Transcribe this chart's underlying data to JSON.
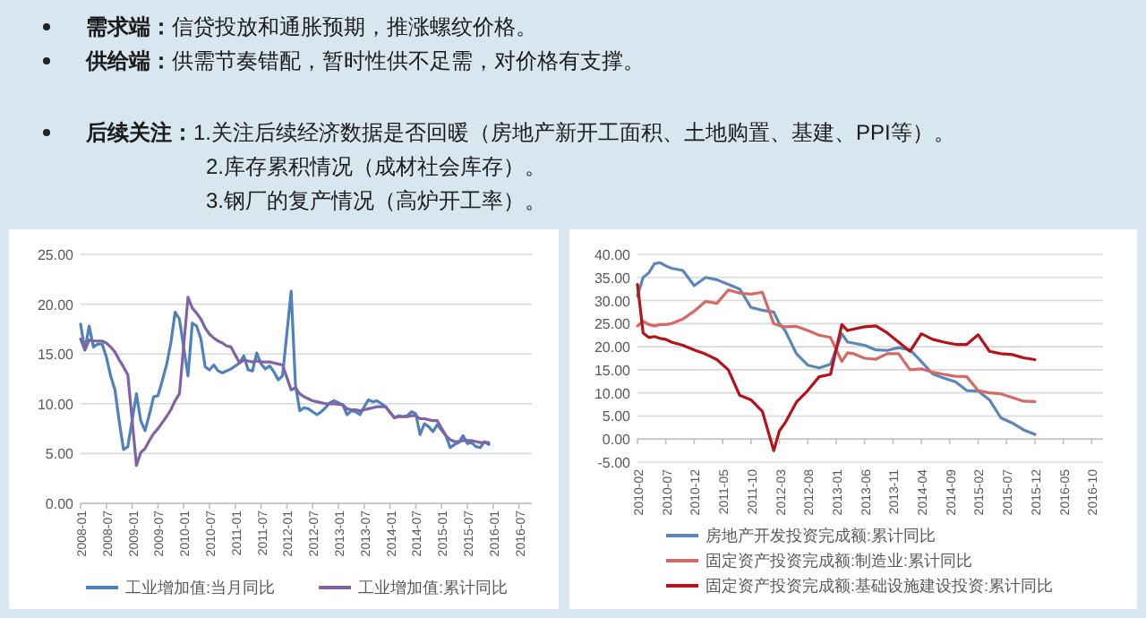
{
  "chart_data": [
    {
      "type": "other",
      "annotations": [
        "需求端：信贷投放和通胀预期，推涨螺纹价格。",
        "供给端：供需节奏错配，暂时性供不足需，对价格有支撑。",
        "后续关注：1.关注后续经济数据是否回暖（房地产新开工面积、土地购置、基建、PPI等）。",
        "2.库存累积情况（成材社会库存）。",
        "3.钢厂的复产情况（高炉开工率）。"
      ]
    },
    {
      "type": "line",
      "grid": "y",
      "legend": "bottom",
      "x": [
        "2008-01",
        "2008-02",
        "2008-03",
        "2008-04",
        "2008-05",
        "2008-06",
        "2008-07",
        "2008-08",
        "2008-09",
        "2008-10",
        "2008-11",
        "2008-12",
        "2009-02",
        "2009-03",
        "2009-04",
        "2009-05",
        "2009-06",
        "2009-07",
        "2009-08",
        "2009-09",
        "2009-10",
        "2009-11",
        "2009-12",
        "2010-02",
        "2010-03",
        "2010-04",
        "2010-05",
        "2010-06",
        "2010-07",
        "2010-08",
        "2010-09",
        "2010-10",
        "2010-11",
        "2010-12",
        "2011-02",
        "2011-03",
        "2011-04",
        "2011-05",
        "2011-06",
        "2011-07",
        "2011-08",
        "2011-09",
        "2011-10",
        "2011-11",
        "2011-12",
        "2012-02",
        "2012-03",
        "2012-04",
        "2012-05",
        "2012-06",
        "2012-07",
        "2012-08",
        "2012-09",
        "2012-10",
        "2012-11",
        "2012-12",
        "2013-02",
        "2013-03",
        "2013-04",
        "2013-05",
        "2013-06",
        "2013-07",
        "2013-08",
        "2013-09",
        "2013-10",
        "2013-11",
        "2013-12",
        "2014-02",
        "2014-03",
        "2014-04",
        "2014-05",
        "2014-06",
        "2014-07",
        "2014-08",
        "2014-09",
        "2014-10",
        "2014-11",
        "2014-12",
        "2015-02",
        "2015-03",
        "2015-04",
        "2015-05",
        "2015-06",
        "2015-07",
        "2015-08",
        "2015-09",
        "2015-10",
        "2015-11",
        "2015-12"
      ],
      "series": [
        {
          "name": "工业增加值:当月同比",
          "color": "#4f81bd",
          "values": [
            18,
            15.4,
            17.8,
            15.7,
            16,
            16,
            14.7,
            12.8,
            11.4,
            8.2,
            5.4,
            5.7,
            11,
            8.3,
            7.3,
            8.9,
            10.7,
            10.8,
            12.3,
            13.9,
            16.1,
            19.2,
            18.5,
            12.8,
            18.1,
            17.8,
            16.5,
            13.7,
            13.4,
            13.9,
            13.3,
            13.1,
            13.3,
            13.5,
            14.1,
            14.8,
            13.4,
            13.3,
            15.1,
            14,
            13.5,
            13.8,
            13.2,
            12.4,
            12.8,
            21.3,
            11.9,
            9.3,
            9.6,
            9.5,
            9.2,
            8.9,
            9.2,
            9.6,
            10.1,
            10.3,
            9.9,
            8.9,
            9.3,
            9.2,
            8.9,
            9.7,
            10.4,
            10.2,
            10.3,
            10,
            9.7,
            8.6,
            8.8,
            8.7,
            8.8,
            9.2,
            9,
            6.9,
            8,
            7.7,
            7.2,
            7.9,
            6.8,
            5.6,
            5.9,
            6.1,
            6.8,
            6,
            6.1,
            5.7,
            5.6,
            6.2,
            5.9
          ]
        },
        {
          "name": "工业增加值:累计同比",
          "color": "#7e64a6",
          "values": [
            16.5,
            15.4,
            16.4,
            16.3,
            16.3,
            16.3,
            16.1,
            15.7,
            15.2,
            14.4,
            13.7,
            12.9,
            3.8,
            5.1,
            5.5,
            6.3,
            7,
            7.5,
            8.1,
            8.7,
            9.4,
            10.3,
            11,
            20.7,
            19.6,
            19.1,
            18.5,
            17.6,
            17,
            16.6,
            16.3,
            16.1,
            15.8,
            15.7,
            14.1,
            14.4,
            14.3,
            14.2,
            14.3,
            14.2,
            14.2,
            14.2,
            14.1,
            14,
            13.9,
            11.4,
            11.6,
            11,
            10.7,
            10.5,
            10.3,
            10.2,
            10.1,
            10,
            10,
            10,
            9.9,
            9.5,
            9.4,
            9.4,
            9.3,
            9.4,
            9.5,
            9.6,
            9.7,
            9.7,
            9.7,
            8.6,
            8.7,
            8.7,
            8.7,
            8.8,
            8.8,
            8.5,
            8.5,
            8.4,
            8.3,
            8.3,
            6.8,
            6.4,
            6.2,
            6.2,
            6.3,
            6.3,
            6.3,
            6.2,
            6.1,
            6.1,
            6.1
          ]
        }
      ],
      "xlim": [
        "2008-01",
        "2016-10"
      ],
      "xticks": [
        "2008-01",
        "2008-07",
        "2009-01",
        "2009-07",
        "2010-01",
        "2010-07",
        "2011-01",
        "2011-07",
        "2012-01",
        "2012-07",
        "2013-01",
        "2013-07",
        "2014-01",
        "2014-07",
        "2015-01",
        "2015-07",
        "2016-01",
        "2016-07"
      ],
      "ylim": [
        0,
        25
      ],
      "yticks": [
        {
          "value": 0,
          "label": "0.00"
        },
        {
          "value": 5,
          "label": "5.00"
        },
        {
          "value": 10,
          "label": "10.00"
        },
        {
          "value": 15,
          "label": "15.00"
        },
        {
          "value": 20,
          "label": "20.00"
        },
        {
          "value": 25,
          "label": "25.00"
        }
      ]
    },
    {
      "type": "line",
      "grid": "y",
      "legend": "bottom",
      "x": [
        "2010-02",
        "2010-03",
        "2010-04",
        "2010-05",
        "2010-06",
        "2010-07",
        "2010-08",
        "2010-10",
        "2010-12",
        "2011-02",
        "2011-04",
        "2011-06",
        "2011-08",
        "2011-10",
        "2011-12",
        "2012-02",
        "2012-03",
        "2012-04",
        "2012-06",
        "2012-08",
        "2012-10",
        "2012-12",
        "2013-02",
        "2013-03",
        "2013-04",
        "2013-06",
        "2013-08",
        "2013-10",
        "2013-12",
        "2014-02",
        "2014-04",
        "2014-06",
        "2014-08",
        "2014-10",
        "2014-12",
        "2015-02",
        "2015-04",
        "2015-06",
        "2015-08",
        "2015-10",
        "2015-12"
      ],
      "series": [
        {
          "name": "房地产开发投资完成额:累计同比",
          "color": "#5a87b8",
          "values": [
            31,
            35,
            36,
            38,
            38.2,
            37.5,
            37,
            36.5,
            33.2,
            35,
            34.5,
            33.5,
            32.5,
            28.5,
            27.9,
            27.5,
            25,
            23.5,
            18.5,
            16,
            15.4,
            16.2,
            22.8,
            21,
            20.8,
            20.3,
            19.3,
            19.2,
            19.8,
            19.3,
            16.8,
            14.1,
            13.2,
            12.4,
            10.5,
            10.4,
            8.5,
            4.6,
            3.5,
            2,
            1
          ]
        },
        {
          "name": "固定资产投资完成额:制造业:累计同比",
          "color": "#d46a66",
          "values": [
            24.5,
            25.5,
            24.8,
            24.5,
            24.8,
            24.8,
            25,
            26,
            27.7,
            29.8,
            29.4,
            32.3,
            31.6,
            31.4,
            31.8,
            25,
            24.6,
            24.3,
            24.4,
            23.5,
            22.5,
            22,
            16.8,
            18.7,
            18.5,
            17.5,
            17.3,
            18.5,
            18.5,
            15,
            15.2,
            14.5,
            14,
            13.6,
            13.5,
            10.5,
            10,
            9.8,
            9,
            8.2,
            8.1
          ]
        },
        {
          "name": "固定资产投资完成额:基础设施建设投资:累计同比",
          "color": "#b5121b",
          "values": [
            33.5,
            23,
            22,
            22.2,
            21.8,
            21.6,
            21,
            20.3,
            19.3,
            18.4,
            17.2,
            15,
            9.5,
            8.5,
            6,
            -2.5,
            1.8,
            3.5,
            8,
            10.5,
            13.5,
            14,
            24.8,
            23.5,
            23.8,
            24.3,
            24.5,
            23,
            21,
            19,
            22.8,
            21.6,
            21,
            20.5,
            20.5,
            22.6,
            19,
            18.5,
            18.3,
            17.6,
            17.2
          ]
        }
      ],
      "xlim": [
        "2010-02",
        "2016-12"
      ],
      "xticks": [
        "2010-02",
        "2010-07",
        "2010-12",
        "2011-05",
        "2011-10",
        "2012-03",
        "2012-08",
        "2013-01",
        "2013-06",
        "2013-11",
        "2014-04",
        "2014-09",
        "2015-02",
        "2015-07",
        "2015-12",
        "2016-05",
        "2016-10"
      ],
      "ylim": [
        -5,
        40
      ],
      "yticks": [
        {
          "value": -5,
          "label": "-5.00"
        },
        {
          "value": 0,
          "label": "0.00"
        },
        {
          "value": 5,
          "label": "5.00"
        },
        {
          "value": 10,
          "label": "10.00"
        },
        {
          "value": 15,
          "label": "15.00"
        },
        {
          "value": 20,
          "label": "20.00"
        },
        {
          "value": 25,
          "label": "25.00"
        },
        {
          "value": 30,
          "label": "30.00"
        },
        {
          "value": 35,
          "label": "35.00"
        },
        {
          "value": 40,
          "label": "40.00"
        }
      ]
    }
  ]
}
